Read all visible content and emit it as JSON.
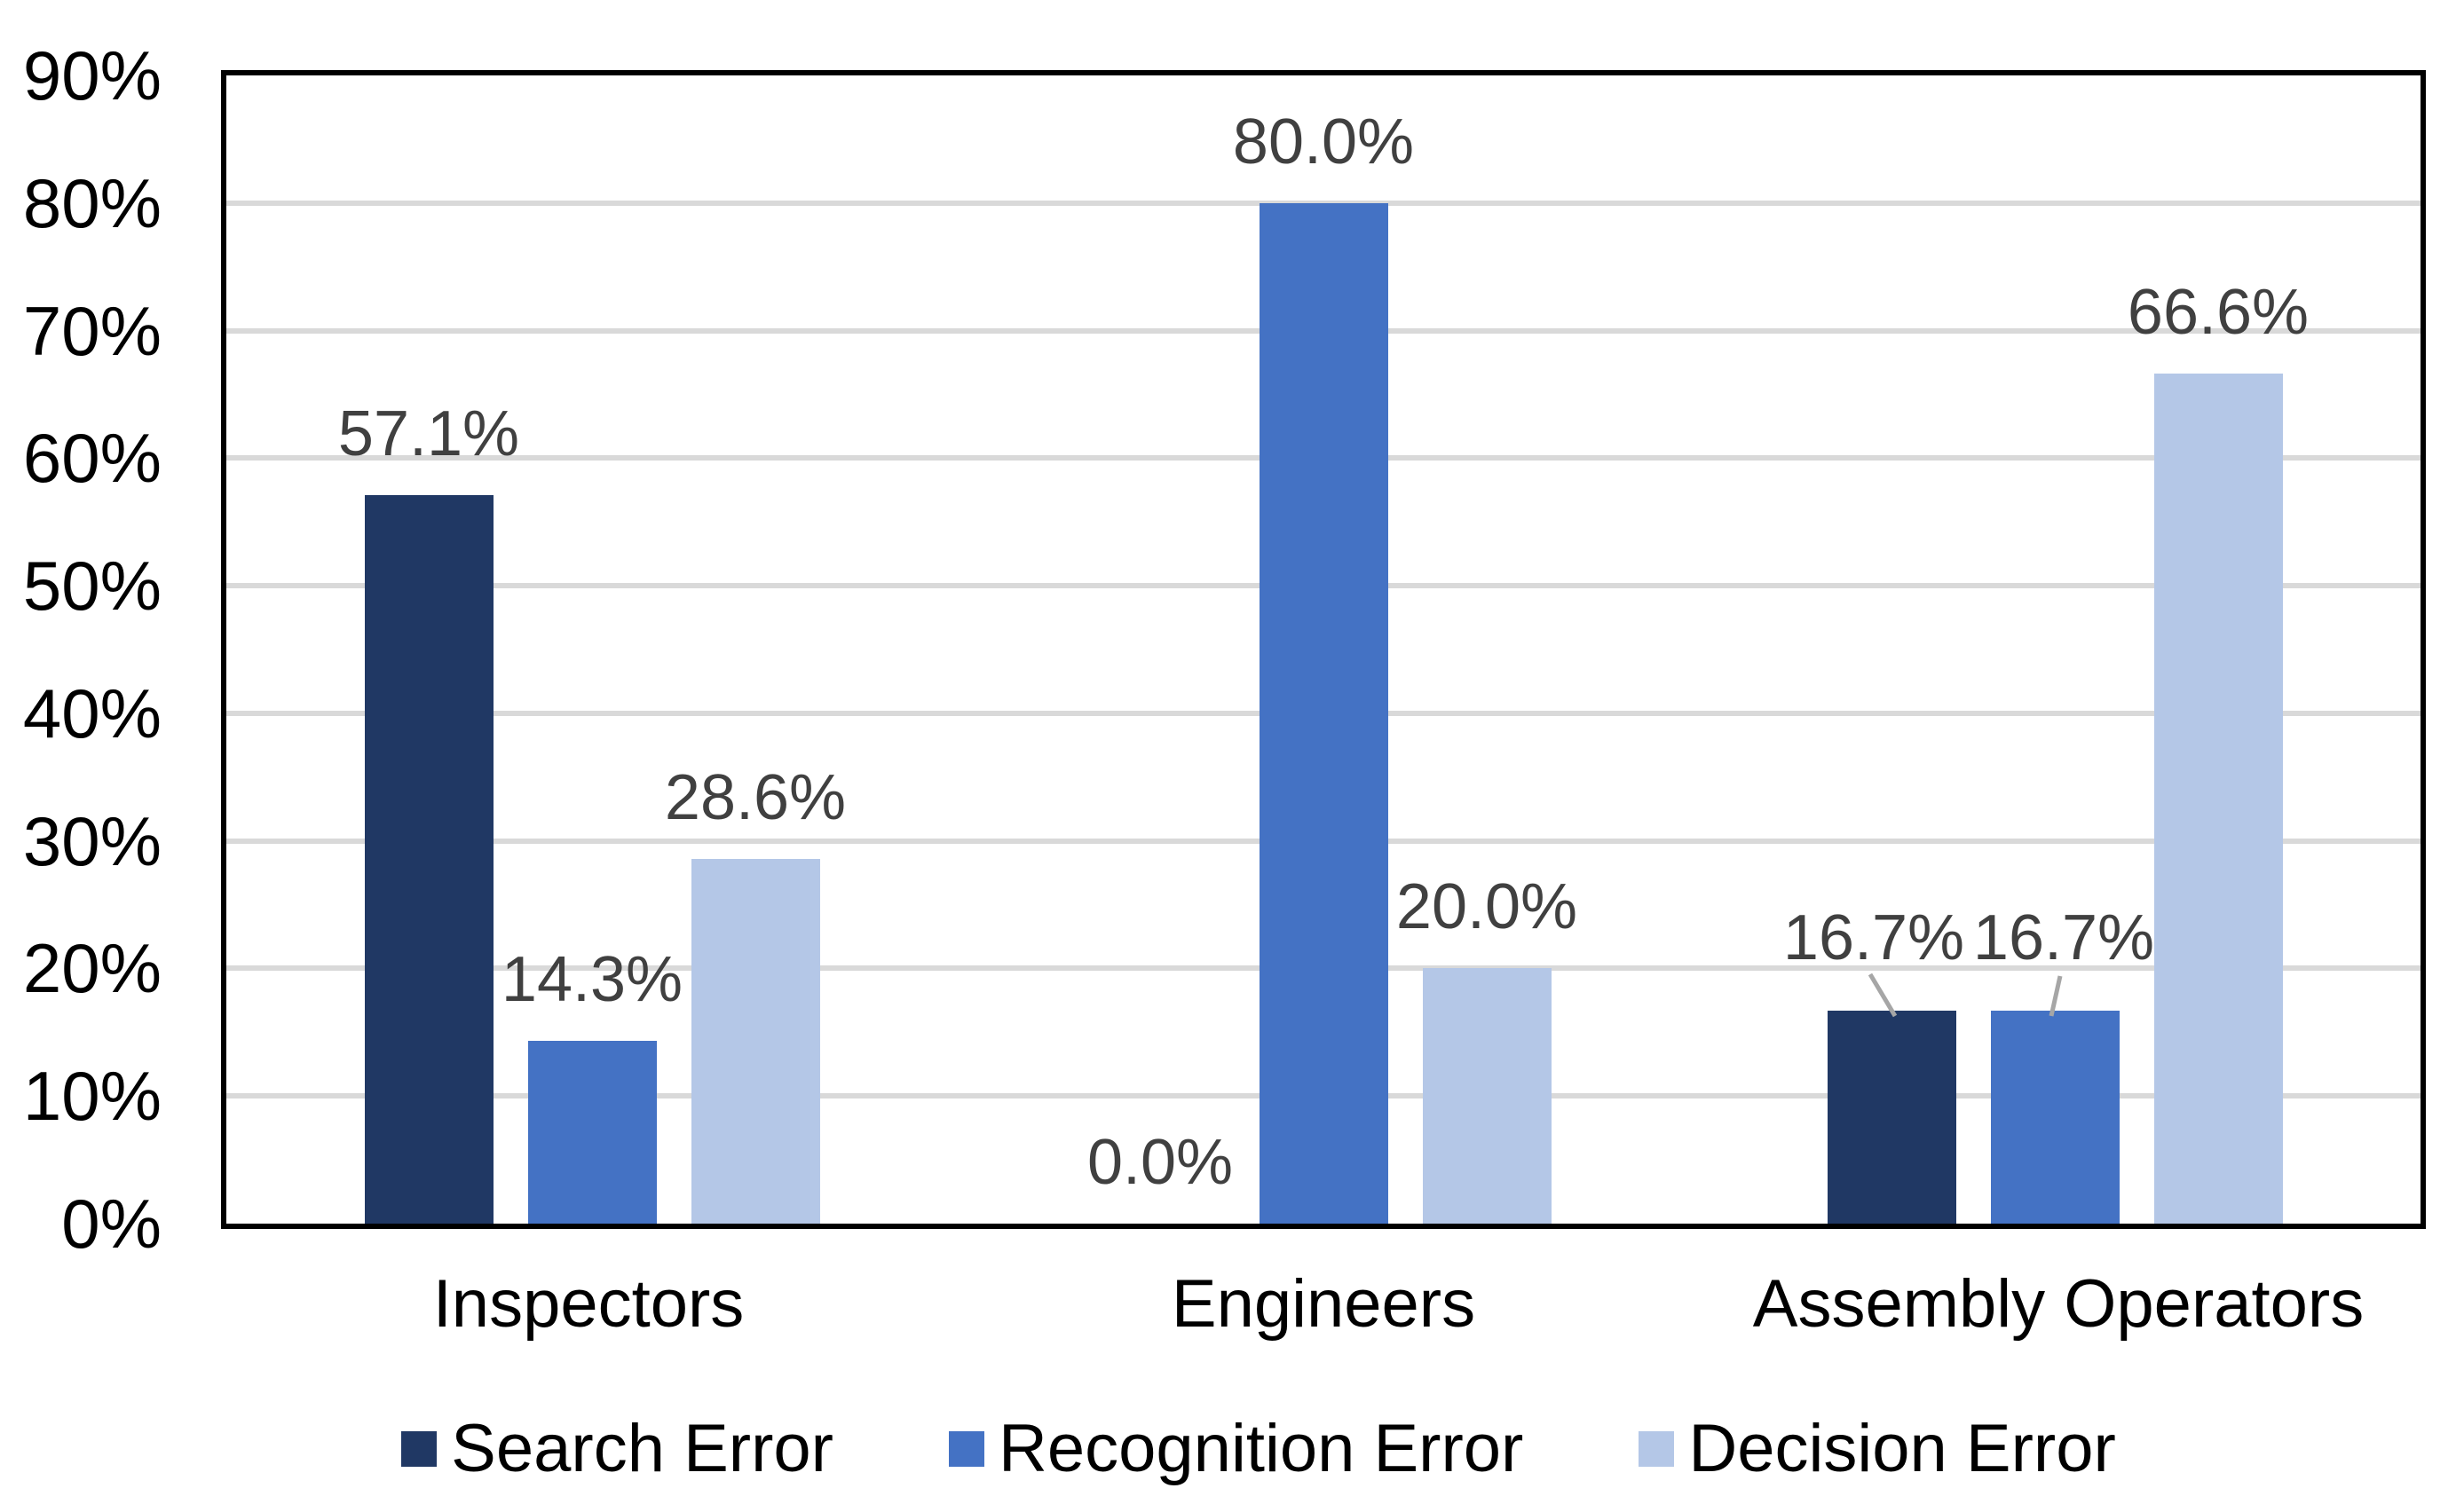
{
  "chart_data": {
    "type": "bar",
    "title": "",
    "categories": [
      "Inspectors",
      "Engineers",
      "Assembly Operators"
    ],
    "series": [
      {
        "name": "Search Error",
        "color": "#203864",
        "values": [
          57.1,
          0.0,
          16.7
        ],
        "labels": [
          "57.1%",
          "0.0%",
          "16.7%"
        ]
      },
      {
        "name": "Recognition Error",
        "color": "#4472C4",
        "values": [
          14.3,
          80.0,
          16.7
        ],
        "labels": [
          "14.3%",
          "80.0%",
          "16.7%"
        ]
      },
      {
        "name": "Decision Error",
        "color": "#B4C7E7",
        "values": [
          28.6,
          20.0,
          66.6
        ],
        "labels": [
          "28.6%",
          "20.0%",
          "66.6%"
        ]
      }
    ],
    "y_ticks": [
      "0%",
      "10%",
      "20%",
      "30%",
      "40%",
      "50%",
      "60%",
      "70%",
      "80%",
      "90%"
    ],
    "ylim": [
      0,
      90
    ],
    "grid": true,
    "gridline_color": "#D9D9D9",
    "plot_border_color": "#000000",
    "data_label_color": "#404040",
    "leader_line_color": "#A6A6A6",
    "legend_position": "bottom"
  }
}
